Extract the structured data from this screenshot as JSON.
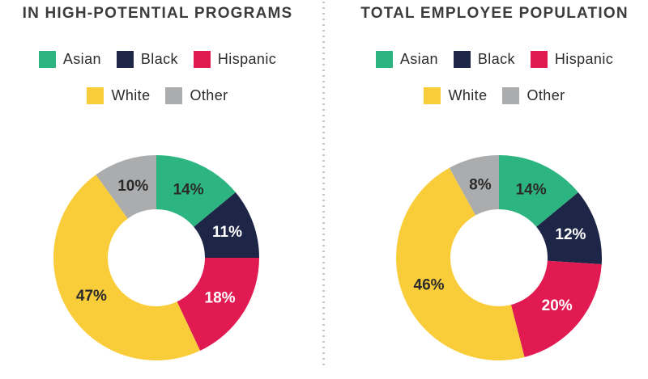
{
  "palette": {
    "asian_green": "#2db581",
    "black_navy": "#1e2647",
    "hispanic_crimson": "#e11a52",
    "white_yellow": "#f9cd3a",
    "other_gray": "#abacae",
    "title_text": "#3c3c3c",
    "label_dark": "#2b2b2b",
    "label_light": "#ffffff",
    "divider_dot": "#c7c7c9",
    "background": "#ffffff"
  },
  "chart_data": [
    {
      "type": "pie",
      "subtype": "donut",
      "title": "IN HIGH-POTENTIAL PROGRAMS",
      "categories": [
        "Asian",
        "Black",
        "Hispanic",
        "White",
        "Other"
      ],
      "values": [
        14,
        11,
        18,
        47,
        10
      ],
      "unit": "%",
      "colors": [
        "#2db581",
        "#1e2647",
        "#e11a52",
        "#f9cd3a",
        "#abacae"
      ],
      "label_colors": [
        "#2b2b2b",
        "#ffffff",
        "#ffffff",
        "#2b2b2b",
        "#2b2b2b"
      ],
      "legend_position": "top",
      "start_angle_deg": 0,
      "direction": "clockwise",
      "hole_ratio": 0.47
    },
    {
      "type": "pie",
      "subtype": "donut",
      "title": "TOTAL EMPLOYEE POPULATION",
      "categories": [
        "Asian",
        "Black",
        "Hispanic",
        "White",
        "Other"
      ],
      "values": [
        14,
        12,
        20,
        46,
        8
      ],
      "unit": "%",
      "colors": [
        "#2db581",
        "#1e2647",
        "#e11a52",
        "#f9cd3a",
        "#abacae"
      ],
      "label_colors": [
        "#2b2b2b",
        "#ffffff",
        "#ffffff",
        "#2b2b2b",
        "#2b2b2b"
      ],
      "legend_position": "top",
      "start_angle_deg": 0,
      "direction": "clockwise",
      "hole_ratio": 0.47
    }
  ]
}
